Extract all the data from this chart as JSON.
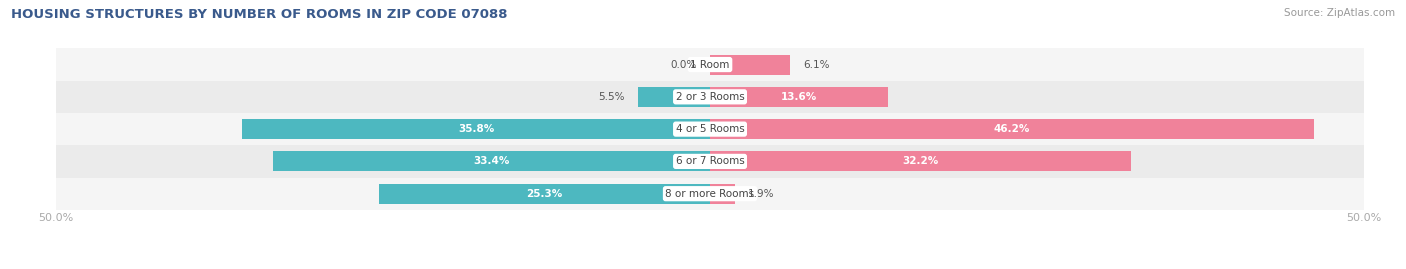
{
  "title": "HOUSING STRUCTURES BY NUMBER OF ROOMS IN ZIP CODE 07088",
  "source": "Source: ZipAtlas.com",
  "categories": [
    "1 Room",
    "2 or 3 Rooms",
    "4 or 5 Rooms",
    "6 or 7 Rooms",
    "8 or more Rooms"
  ],
  "owner_values": [
    0.0,
    5.5,
    35.8,
    33.4,
    25.3
  ],
  "renter_values": [
    6.1,
    13.6,
    46.2,
    32.2,
    1.9
  ],
  "owner_color": "#4db8c0",
  "renter_color": "#f0829a",
  "axis_limit": 50.0,
  "bar_height": 0.62,
  "title_color": "#3a5a8c",
  "source_color": "#999999",
  "axis_label_color": "#aaaaaa",
  "row_colors": [
    "#f5f5f5",
    "#ebebeb"
  ],
  "label_threshold": 10.0
}
